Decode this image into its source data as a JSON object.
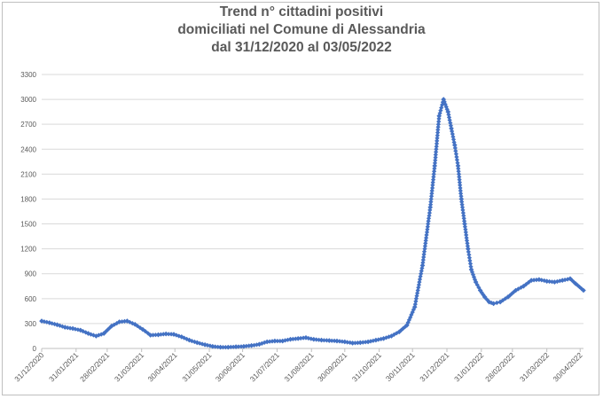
{
  "chart_data": {
    "type": "line",
    "title_lines": [
      "Trend n° cittadini positivi",
      "domiciliati nel Comune di Alessandria",
      "dal 31/12/2020 al 03/05/2022"
    ],
    "xlabel": "",
    "ylabel": "",
    "ylim": [
      0,
      3300
    ],
    "yticks": [
      "0",
      "300",
      "600",
      "900",
      "1200",
      "1500",
      "1800",
      "2100",
      "2400",
      "2700",
      "3000",
      "3300"
    ],
    "x_range": [
      "2020-12-31",
      "2022-05-03"
    ],
    "xticks": [
      "31/12/2020",
      "31/01/2021",
      "28/02/2021",
      "31/03/2021",
      "30/04/2021",
      "31/05/2021",
      "30/06/2021",
      "31/07/2021",
      "31/08/2021",
      "30/09/2021",
      "31/10/2021",
      "30/11/2021",
      "31/12/2021",
      "31/01/2022",
      "28/02/2022",
      "31/03/2022",
      "30/04/2022"
    ],
    "grid": "horizontal",
    "legend": "none",
    "line_color": "#4472c4",
    "marker": "diamond",
    "series": [
      {
        "x": [
          "2020-12-31",
          "2021-01-07",
          "2021-01-14",
          "2021-01-21",
          "2021-01-28",
          "2021-02-04",
          "2021-02-11",
          "2021-02-18",
          "2021-02-25",
          "2021-03-04",
          "2021-03-11",
          "2021-03-18",
          "2021-03-25",
          "2021-04-01",
          "2021-04-08",
          "2021-04-15",
          "2021-04-22",
          "2021-04-29",
          "2021-05-06",
          "2021-05-13",
          "2021-05-20",
          "2021-05-27",
          "2021-06-03",
          "2021-06-10",
          "2021-06-17",
          "2021-06-24",
          "2021-07-01",
          "2021-07-08",
          "2021-07-15",
          "2021-07-22",
          "2021-07-29",
          "2021-08-05",
          "2021-08-12",
          "2021-08-19",
          "2021-08-26",
          "2021-09-02",
          "2021-09-09",
          "2021-09-16",
          "2021-09-23",
          "2021-09-30",
          "2021-10-07",
          "2021-10-14",
          "2021-10-21",
          "2021-10-28",
          "2021-11-04",
          "2021-11-11",
          "2021-11-18",
          "2021-11-25",
          "2021-12-02",
          "2021-12-09",
          "2021-12-16",
          "2021-12-20",
          "2021-12-24",
          "2021-12-28",
          "2022-01-01",
          "2022-01-04",
          "2022-01-07",
          "2022-01-10",
          "2022-01-13",
          "2022-01-16",
          "2022-01-19",
          "2022-01-22",
          "2022-01-26",
          "2022-01-30",
          "2022-02-03",
          "2022-02-07",
          "2022-02-11",
          "2022-02-17",
          "2022-02-24",
          "2022-03-03",
          "2022-03-10",
          "2022-03-17",
          "2022-03-24",
          "2022-03-31",
          "2022-04-07",
          "2022-04-14",
          "2022-04-21",
          "2022-04-26",
          "2022-05-03"
        ],
        "values": [
          330,
          310,
          285,
          255,
          240,
          220,
          180,
          150,
          180,
          270,
          320,
          330,
          290,
          230,
          160,
          165,
          175,
          170,
          140,
          100,
          70,
          45,
          25,
          15,
          15,
          20,
          25,
          35,
          50,
          80,
          90,
          90,
          110,
          120,
          130,
          110,
          100,
          95,
          90,
          80,
          65,
          70,
          80,
          100,
          120,
          150,
          200,
          280,
          500,
          1000,
          1700,
          2200,
          2800,
          3000,
          2850,
          2650,
          2450,
          2200,
          1800,
          1500,
          1200,
          950,
          800,
          700,
          620,
          560,
          540,
          560,
          620,
          700,
          750,
          820,
          830,
          810,
          800,
          820,
          840,
          780,
          700
        ]
      }
    ]
  }
}
